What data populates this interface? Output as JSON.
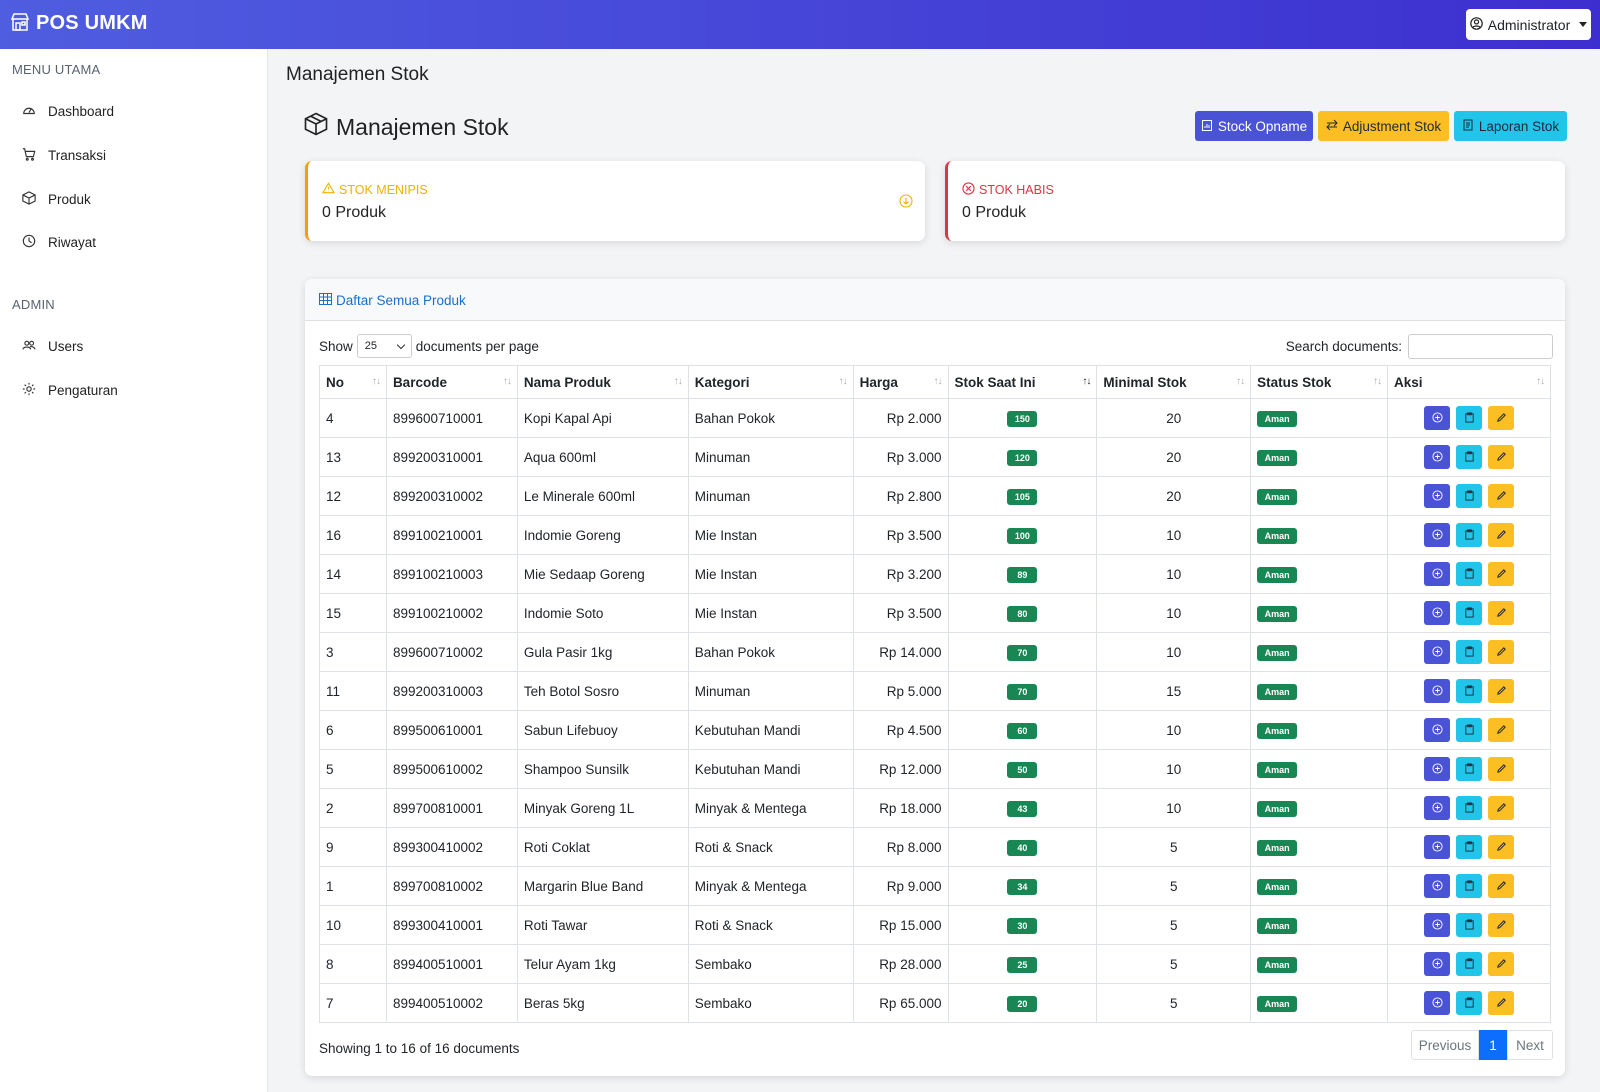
{
  "app": {
    "brand": "POS UMKM",
    "user_label": "Administrator"
  },
  "sidebar": {
    "heading_main": "MENU UTAMA",
    "heading_admin": "ADMIN",
    "items": [
      {
        "label": "Dashboard"
      },
      {
        "label": "Transaksi"
      },
      {
        "label": "Produk"
      },
      {
        "label": "Riwayat"
      },
      {
        "label": "Users"
      },
      {
        "label": "Pengaturan"
      }
    ]
  },
  "page": {
    "title": "Manajemen Stok",
    "content_title": "Manajemen Stok"
  },
  "toolbar": {
    "opname_label": "Stock Opname",
    "adjust_label": "Adjustment Stok",
    "laporan_label": "Laporan Stok"
  },
  "stats": {
    "menipis_label": "STOK MENIPIS",
    "menipis_value": "0 Produk",
    "habis_label": "STOK HABIS",
    "habis_value": "0 Produk"
  },
  "table_card": {
    "title": "Daftar Semua Produk",
    "show_label": "Show",
    "per_page": "25",
    "per_page_label": "documents per page",
    "search_label": "Search documents:",
    "search_placeholder": "",
    "headers": [
      "No",
      "Barcode",
      "Nama Produk",
      "Kategori",
      "Harga",
      "Stok Saat Ini",
      "Minimal Stok",
      "Status Stok",
      "Aksi"
    ],
    "rows": [
      {
        "no": "4",
        "barcode": "899600710001",
        "nama": "Kopi Kapal Api",
        "kategori": "Bahan Pokok",
        "harga": "Rp 2.000",
        "stok": "150",
        "minimal": "20",
        "status": "Aman"
      },
      {
        "no": "13",
        "barcode": "899200310001",
        "nama": "Aqua 600ml",
        "kategori": "Minuman",
        "harga": "Rp 3.000",
        "stok": "120",
        "minimal": "20",
        "status": "Aman"
      },
      {
        "no": "12",
        "barcode": "899200310002",
        "nama": "Le Minerale 600ml",
        "kategori": "Minuman",
        "harga": "Rp 2.800",
        "stok": "105",
        "minimal": "20",
        "status": "Aman"
      },
      {
        "no": "16",
        "barcode": "899100210001",
        "nama": "Indomie Goreng",
        "kategori": "Mie Instan",
        "harga": "Rp 3.500",
        "stok": "100",
        "minimal": "10",
        "status": "Aman"
      },
      {
        "no": "14",
        "barcode": "899100210003",
        "nama": "Mie Sedaap Goreng",
        "kategori": "Mie Instan",
        "harga": "Rp 3.200",
        "stok": "89",
        "minimal": "10",
        "status": "Aman"
      },
      {
        "no": "15",
        "barcode": "899100210002",
        "nama": "Indomie Soto",
        "kategori": "Mie Instan",
        "harga": "Rp 3.500",
        "stok": "80",
        "minimal": "10",
        "status": "Aman"
      },
      {
        "no": "3",
        "barcode": "899600710002",
        "nama": "Gula Pasir 1kg",
        "kategori": "Bahan Pokok",
        "harga": "Rp 14.000",
        "stok": "70",
        "minimal": "10",
        "status": "Aman"
      },
      {
        "no": "11",
        "barcode": "899200310003",
        "nama": "Teh Botol Sosro",
        "kategori": "Minuman",
        "harga": "Rp 5.000",
        "stok": "70",
        "minimal": "15",
        "status": "Aman"
      },
      {
        "no": "6",
        "barcode": "899500610001",
        "nama": "Sabun Lifebuoy",
        "kategori": "Kebutuhan Mandi",
        "harga": "Rp 4.500",
        "stok": "60",
        "minimal": "10",
        "status": "Aman"
      },
      {
        "no": "5",
        "barcode": "899500610002",
        "nama": "Shampoo Sunsilk",
        "kategori": "Kebutuhan Mandi",
        "harga": "Rp 12.000",
        "stok": "50",
        "minimal": "10",
        "status": "Aman"
      },
      {
        "no": "2",
        "barcode": "899700810001",
        "nama": "Minyak Goreng 1L",
        "kategori": "Minyak & Mentega",
        "harga": "Rp 18.000",
        "stok": "43",
        "minimal": "10",
        "status": "Aman"
      },
      {
        "no": "9",
        "barcode": "899300410002",
        "nama": "Roti Coklat",
        "kategori": "Roti & Snack",
        "harga": "Rp 8.000",
        "stok": "40",
        "minimal": "5",
        "status": "Aman"
      },
      {
        "no": "1",
        "barcode": "899700810002",
        "nama": "Margarin Blue Band",
        "kategori": "Minyak & Mentega",
        "harga": "Rp 9.000",
        "stok": "34",
        "minimal": "5",
        "status": "Aman"
      },
      {
        "no": "10",
        "barcode": "899300410001",
        "nama": "Roti Tawar",
        "kategori": "Roti & Snack",
        "harga": "Rp 15.000",
        "stok": "30",
        "minimal": "5",
        "status": "Aman"
      },
      {
        "no": "8",
        "barcode": "899400510001",
        "nama": "Telur Ayam 1kg",
        "kategori": "Sembako",
        "harga": "Rp 28.000",
        "stok": "25",
        "minimal": "5",
        "status": "Aman"
      },
      {
        "no": "7",
        "barcode": "899400510002",
        "nama": "Beras 5kg",
        "kategori": "Sembako",
        "harga": "Rp 65.000",
        "stok": "20",
        "minimal": "5",
        "status": "Aman"
      }
    ],
    "info": "Showing 1 to 16 of 16 documents",
    "pagination": {
      "prev": "Previous",
      "current": "1",
      "next": "Next"
    }
  },
  "colors": {
    "primary": "#4a53d6",
    "warning": "#fbbf24",
    "info": "#22c5ea",
    "success": "#198754",
    "danger": "#dc3545",
    "link": "#1a6fd1"
  },
  "icons": {
    "brand": "shop-icon",
    "dashboard": "speedometer-icon",
    "transaksi": "cart-icon",
    "produk": "box-icon",
    "riwayat": "clock-icon",
    "users": "people-icon",
    "pengaturan": "gear-icon"
  }
}
